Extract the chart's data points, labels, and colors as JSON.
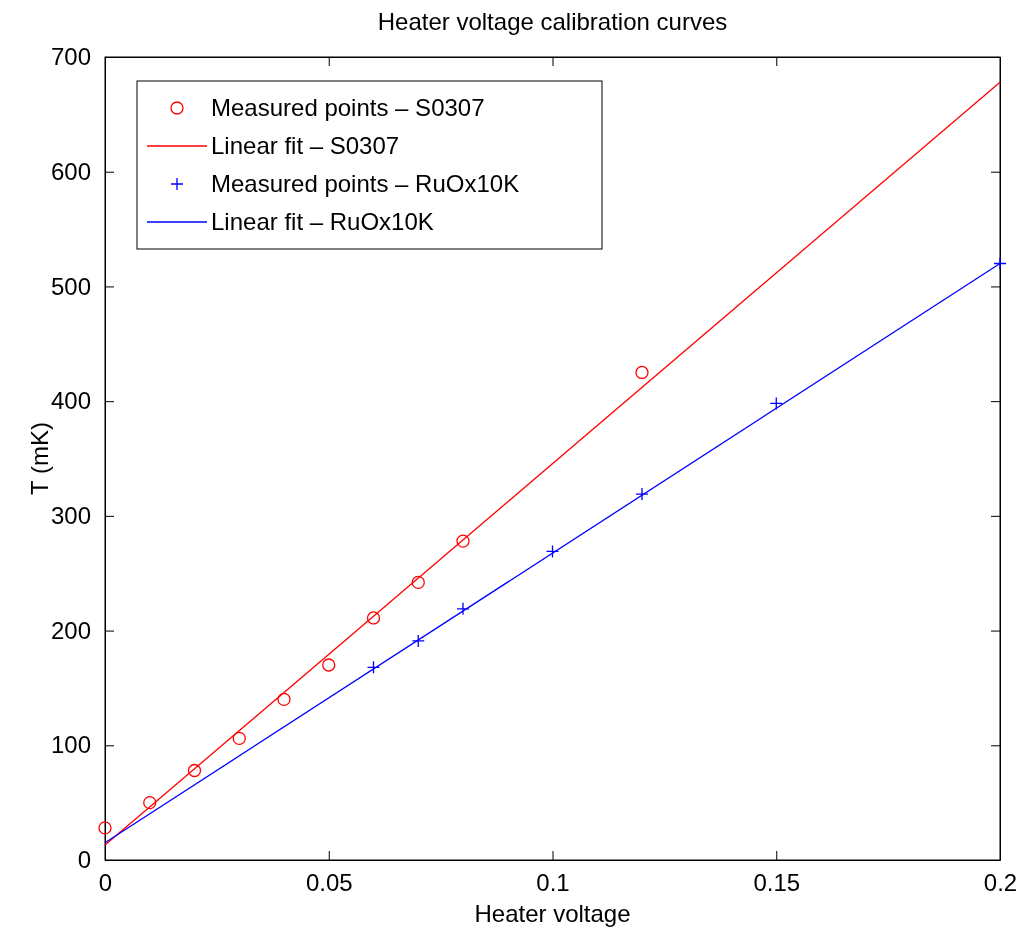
{
  "chart_data": {
    "type": "scatter",
    "title": "Heater voltage calibration curves",
    "xlabel": "Heater voltage",
    "ylabel": "T (mK)",
    "xlim": [
      0,
      0.2
    ],
    "xticks": [
      0,
      0.05,
      0.1,
      0.15,
      0.2
    ],
    "ylim": [
      0,
      700
    ],
    "yticks": [
      0,
      100,
      200,
      300,
      400,
      500,
      600,
      700
    ],
    "grid": false,
    "legend": "top left",
    "series": [
      {
        "name": "Measured points – S0307",
        "marker": "circle",
        "color": "#ff0000",
        "x": [
          0,
          0.01,
          0.02,
          0.03,
          0.04,
          0.05,
          0.06,
          0.07,
          0.08,
          0.12
        ],
        "values": [
          28,
          50,
          78,
          106,
          140,
          170,
          211,
          242,
          278,
          425
        ]
      },
      {
        "name": "Linear fit – S0307",
        "type": "line",
        "marker": "none",
        "line_style": "solid",
        "color": "#ff0000",
        "x": [
          0,
          0.2
        ],
        "values": [
          13,
          678
        ]
      },
      {
        "name": "Measured points – RuOx10K",
        "marker": "cross",
        "color": "#0000ff",
        "x": [
          0.06,
          0.07,
          0.08,
          0.1,
          0.12,
          0.15,
          0.2
        ],
        "values": [
          168,
          191,
          219,
          269,
          319,
          398,
          520
        ]
      },
      {
        "name": "Linear fit – RuOx10K",
        "type": "line",
        "marker": "none",
        "line_style": "solid",
        "color": "#0000ff",
        "x": [
          0,
          0.2
        ],
        "values": [
          15,
          520
        ]
      }
    ]
  }
}
